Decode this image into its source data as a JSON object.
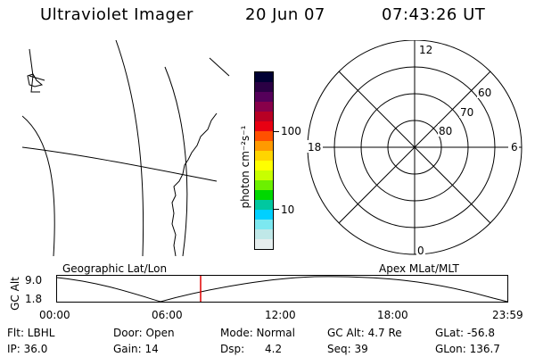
{
  "header": {
    "title": "Ultraviolet Imager",
    "date": "20 Jun 07",
    "time": "07:43:26 UT"
  },
  "colorbar": {
    "unit_label": "photon cm⁻²s⁻¹",
    "tick_labels": [
      "100",
      "10"
    ],
    "colors": [
      "#000033",
      "#2a0044",
      "#55005a",
      "#88004a",
      "#b80024",
      "#e80012",
      "#ff5000",
      "#ff9a00",
      "#ffd500",
      "#ffff00",
      "#c8ff00",
      "#6cf000",
      "#00d800",
      "#00c8a0",
      "#00d0ff",
      "#7ce8f0",
      "#c0e8e8",
      "#e6eeee"
    ]
  },
  "polar": {
    "mlt_labels": [
      "12",
      "18",
      "6",
      "0"
    ],
    "mlat_labels": [
      "60",
      "70",
      "80"
    ]
  },
  "track": {
    "left_label": "Geographic Lat/Lon",
    "right_label": "Apex MLat/MLT",
    "axis_label": "GC Alt",
    "y_labels": [
      "9.0",
      "1.8"
    ],
    "x_labels": [
      "00:00",
      "06:00",
      "12:00",
      "18:00",
      "23:59"
    ]
  },
  "info": {
    "row1": [
      "Flt: LBHL",
      "Door: Open",
      "Mode: Normal",
      "GC Alt: 4.7 Re",
      "GLat: -56.8"
    ],
    "row2": [
      "IP: 36.0",
      "Gain: 14",
      "Dsp:      4.2",
      "Seq: 39",
      "GLon: 136.7"
    ]
  }
}
